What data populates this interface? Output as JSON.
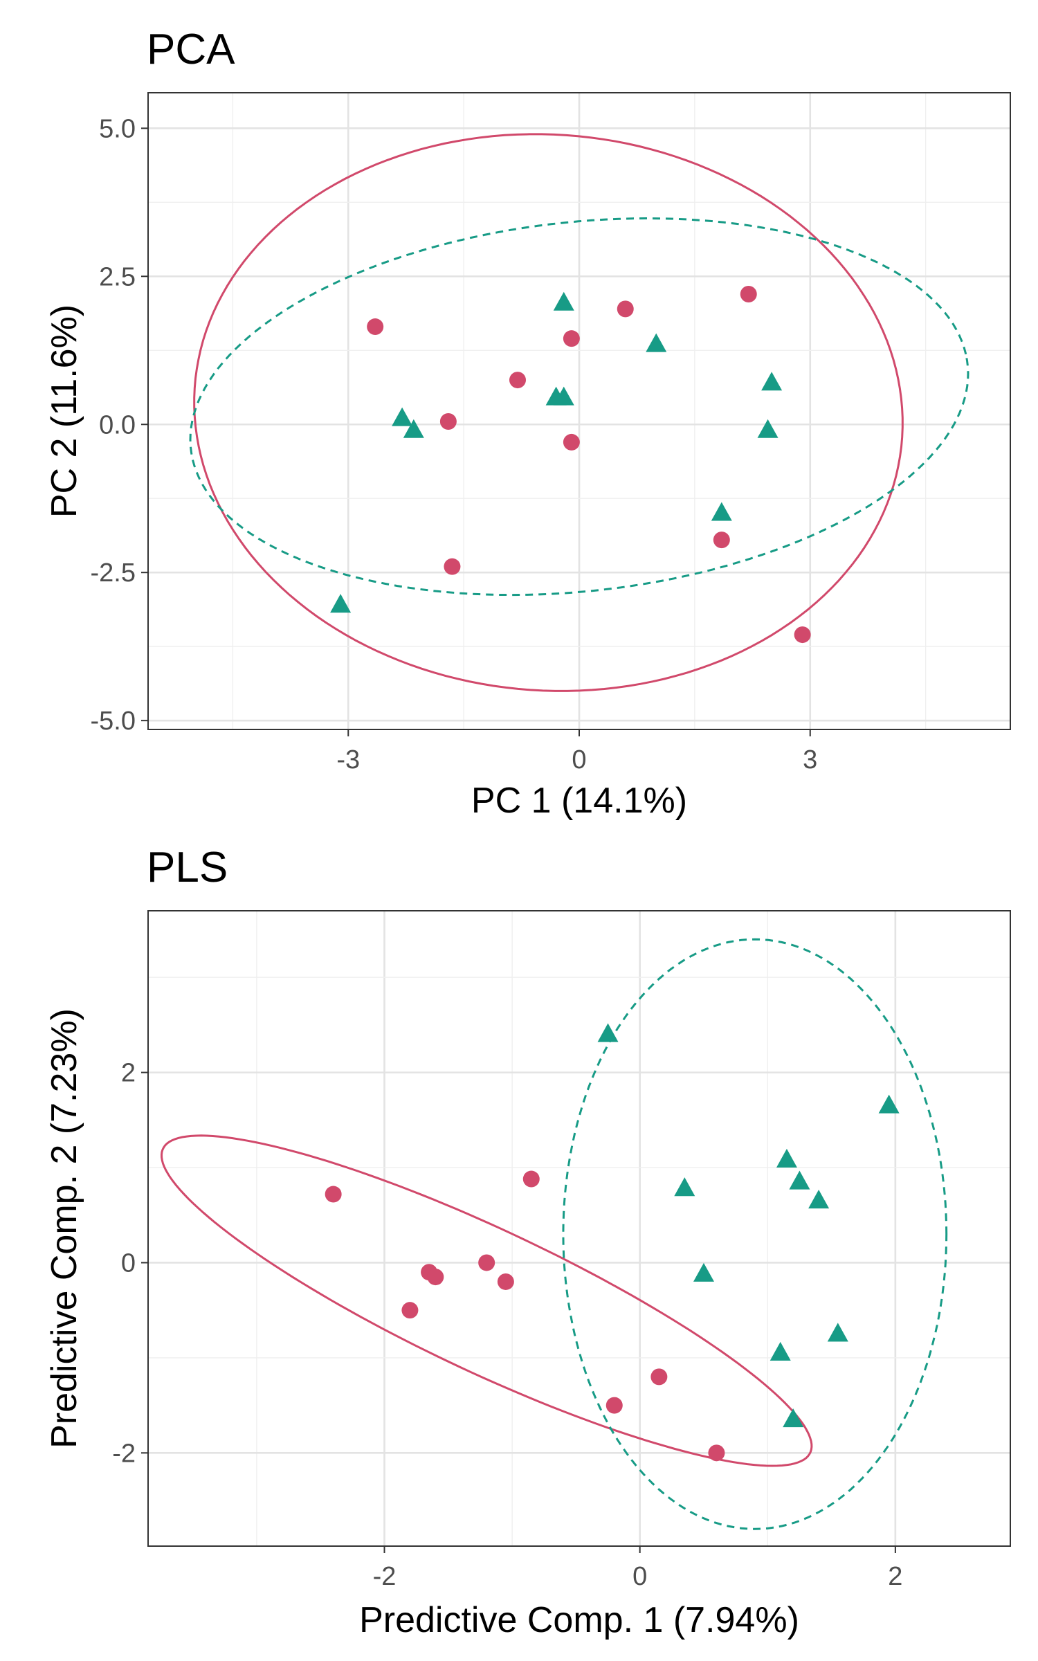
{
  "colors": {
    "red_group": "#d1496b",
    "green_group": "#179b86",
    "grid": "#e3e3e3",
    "border": "#333333"
  },
  "chart_data": [
    {
      "type": "scatter",
      "title": "PCA",
      "xlabel": "PC 1 (14.1%)",
      "ylabel": "PC 2 (11.6%)",
      "xlim": [
        -5.6,
        5.6
      ],
      "ylim": [
        -5.15,
        5.6
      ],
      "xticks": [
        -3,
        0,
        3
      ],
      "xtick_labels": [
        "-3",
        "0",
        "3"
      ],
      "yticks": [
        -5,
        -2.5,
        0,
        2.5,
        5
      ],
      "ytick_labels": [
        "-5.0",
        "-2.5",
        "0.0",
        "2.5",
        "5.0"
      ],
      "grid": true,
      "legend": "none",
      "series": [
        {
          "marker": "circle",
          "color": "#d1496b",
          "ellipse": "solid",
          "ellipse_params": {
            "cx": -0.4,
            "cy": 0.2,
            "rx": 4.55,
            "ry": 4.75,
            "angle_deg": 30
          },
          "x": [
            -2.65,
            -1.7,
            -1.65,
            -0.8,
            -0.1,
            -0.1,
            0.6,
            2.2,
            1.85,
            2.9
          ],
          "y": [
            1.65,
            0.05,
            -2.4,
            0.75,
            1.45,
            -0.3,
            1.95,
            2.2,
            -1.95,
            -3.55
          ]
        },
        {
          "marker": "triangle",
          "color": "#179b86",
          "ellipse": "dashed",
          "ellipse_params": {
            "cx": 0.0,
            "cy": 0.3,
            "rx": 5.1,
            "ry": 3.1,
            "angle_deg": 10
          },
          "x": [
            -0.2,
            1.0,
            2.5,
            2.45,
            -0.3,
            -0.2,
            -2.3,
            -2.15,
            1.85,
            -3.1
          ],
          "y": [
            2.05,
            1.35,
            0.7,
            -0.1,
            0.45,
            0.45,
            0.1,
            -0.1,
            -1.5,
            -3.05
          ]
        }
      ]
    },
    {
      "type": "scatter",
      "title": "PLS",
      "xlabel": "Predictive Comp. 1 (7.94%)",
      "ylabel": "Predictive Comp. 2 (7.23%)",
      "xlim": [
        -3.85,
        2.9
      ],
      "ylim": [
        -2.98,
        3.7
      ],
      "xticks": [
        -2,
        0,
        2
      ],
      "xtick_labels": [
        "-2",
        "0",
        "2"
      ],
      "yticks": [
        -2,
        0,
        2
      ],
      "ytick_labels": [
        "-2",
        "0",
        "2"
      ],
      "grid": true,
      "legend": "none",
      "series": [
        {
          "marker": "circle",
          "color": "#d1496b",
          "ellipse": "solid",
          "ellipse_params": {
            "cx": -1.2,
            "cy": -0.4,
            "rx": 3.0,
            "ry": 0.7,
            "angle_deg": -33
          },
          "x": [
            -2.4,
            -0.85,
            -1.65,
            -1.6,
            -1.8,
            -1.2,
            -1.05,
            0.15,
            -0.2,
            0.6
          ],
          "y": [
            0.72,
            0.88,
            -0.1,
            -0.15,
            -0.5,
            0.0,
            -0.2,
            -1.2,
            -1.5,
            -2.0
          ]
        },
        {
          "marker": "triangle",
          "color": "#179b86",
          "ellipse": "dashed",
          "ellipse_params": {
            "cx": 0.9,
            "cy": 0.3,
            "rx": 1.5,
            "ry": 3.1,
            "angle_deg": 0
          },
          "x": [
            -0.25,
            1.95,
            0.35,
            1.15,
            1.25,
            1.4,
            0.5,
            1.55,
            1.1,
            1.2
          ],
          "y": [
            2.4,
            1.65,
            0.78,
            1.08,
            0.85,
            0.65,
            -0.12,
            -0.75,
            -0.95,
            -1.65
          ]
        }
      ]
    }
  ]
}
